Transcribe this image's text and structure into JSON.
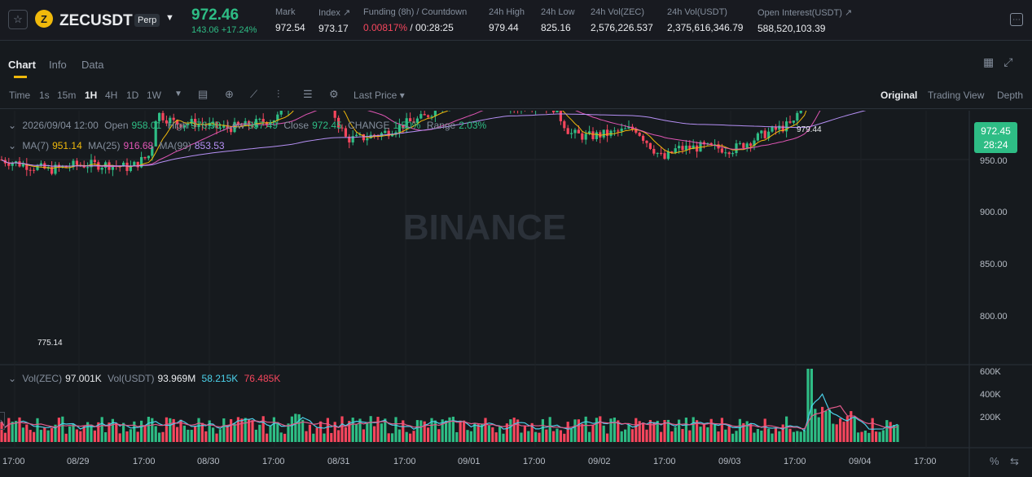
{
  "header": {
    "symbol": "ZECUSDT",
    "badge": "Perp",
    "coin_glyph": "Z",
    "last_price": "972.46",
    "change": "143.06 +17.24%",
    "stats": [
      {
        "label": "Mark",
        "value": "972.54"
      },
      {
        "label": "Index ↗",
        "value": "973.17"
      },
      {
        "label": "Funding (8h) / Countdown",
        "value_red": "0.00817%",
        "value": " / 00:28:25"
      },
      {
        "label": "24h High",
        "value": "979.44"
      },
      {
        "label": "24h Low",
        "value": "825.16"
      },
      {
        "label": "24h Vol(ZEC)",
        "value": "2,576,226.537"
      },
      {
        "label": "24h Vol(USDT)",
        "value": "2,375,616,346.79"
      },
      {
        "label": "Open Interest(USDT) ↗",
        "value": "588,520,103.39"
      }
    ]
  },
  "tabs": [
    "Chart",
    "Info",
    "Data"
  ],
  "toolbar": {
    "intervals": [
      "Time",
      "1s",
      "15m",
      "1H",
      "4H",
      "1D",
      "1W"
    ],
    "active_interval": "1H",
    "price_type": "Last Price ▾",
    "views": [
      "Original",
      "Trading View",
      "Depth"
    ]
  },
  "legend": {
    "date": "2026/09/04 12:00",
    "open_label": "Open",
    "open": "958.01",
    "high_label": "High",
    "high": "976.98",
    "low_label": "Low",
    "low": "957.49",
    "close_label": "Close",
    "close": "972.45",
    "change_label": "CHANGE",
    "change": "1.50%",
    "range_label": "Range",
    "range": "2.03%",
    "ma7_label": "MA(7)",
    "ma7": "951.14",
    "ma25_label": "MA(25)",
    "ma25": "916.68",
    "ma99_label": "MA(99)",
    "ma99": "853.53",
    "vol_zec_label": "Vol(ZEC)",
    "vol_zec": "97.001K",
    "vol_usdt_label": "Vol(USDT)",
    "vol_usdt": "93.969M",
    "vol_ma1": "58.215K",
    "vol_ma2": "76.485K"
  },
  "price_tag": {
    "price": "972.45",
    "countdown": "28:24"
  },
  "high_marker": "979.44",
  "low_marker": "775.14",
  "watermark": "BINANCE",
  "colors": {
    "up": "#2ebd85",
    "down": "#f6465d",
    "ma7": "#f0b90b",
    "ma25": "#e056b5",
    "ma99": "#b690f5",
    "accent": "#f0b90b"
  },
  "chart_data": {
    "type": "candlestick",
    "ylim": [
      760,
      990
    ],
    "y_ticks": [
      "950.00",
      "900.00",
      "850.00",
      "800.00"
    ],
    "vol_ticks": [
      "600K",
      "400K",
      "200K"
    ],
    "x_ticks": [
      "17:00",
      "08/29",
      "17:00",
      "08/30",
      "17:00",
      "08/31",
      "17:00",
      "09/01",
      "17:00",
      "09/02",
      "17:00",
      "09/03",
      "17:00",
      "09/04",
      "17:00"
    ]
  }
}
